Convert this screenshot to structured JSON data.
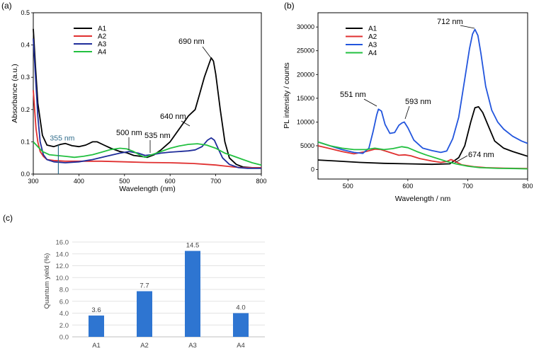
{
  "chart_data": [
    {
      "panel": "(a)",
      "type": "line",
      "xlabel": "Wavelength (nm)",
      "ylabel": "Absorbance (a.u.)",
      "xlim": [
        300,
        800
      ],
      "ylim": [
        0,
        0.5
      ],
      "xticks": [
        300,
        400,
        500,
        600,
        700,
        800
      ],
      "yticks": [
        0.0,
        0.1,
        0.2,
        0.3,
        0.4,
        0.5
      ],
      "ytick_labels": [
        "0.0",
        "0.1",
        "0.2",
        "0.3",
        "0.4",
        "0.5"
      ],
      "legend": "top-left",
      "marker": {
        "x": 355,
        "label": "355 nm",
        "color": "#2e6b8a"
      },
      "annotations": [
        {
          "text": "690 nm",
          "x": 690,
          "y": 0.36
        },
        {
          "text": "640 nm",
          "x": 640,
          "y": 0.094
        },
        {
          "text": "500 nm",
          "x": 505,
          "y": 0.07
        },
        {
          "text": "535 nm",
          "x": 540,
          "y": 0.065
        }
      ],
      "series": [
        {
          "name": "A1",
          "color": "#000000",
          "points": [
            [
              300,
              0.45
            ],
            [
              305,
              0.33
            ],
            [
              310,
              0.22
            ],
            [
              320,
              0.12
            ],
            [
              330,
              0.09
            ],
            [
              345,
              0.085
            ],
            [
              360,
              0.092
            ],
            [
              370,
              0.095
            ],
            [
              385,
              0.088
            ],
            [
              400,
              0.085
            ],
            [
              415,
              0.09
            ],
            [
              430,
              0.1
            ],
            [
              440,
              0.1
            ],
            [
              455,
              0.09
            ],
            [
              470,
              0.08
            ],
            [
              490,
              0.07
            ],
            [
              505,
              0.066
            ],
            [
              520,
              0.058
            ],
            [
              535,
              0.055
            ],
            [
              550,
              0.052
            ],
            [
              565,
              0.06
            ],
            [
              580,
              0.075
            ],
            [
              600,
              0.1
            ],
            [
              620,
              0.14
            ],
            [
              640,
              0.18
            ],
            [
              655,
              0.2
            ],
            [
              665,
              0.25
            ],
            [
              675,
              0.3
            ],
            [
              685,
              0.34
            ],
            [
              690,
              0.36
            ],
            [
              695,
              0.35
            ],
            [
              700,
              0.31
            ],
            [
              710,
              0.2
            ],
            [
              720,
              0.1
            ],
            [
              730,
              0.05
            ],
            [
              745,
              0.03
            ],
            [
              760,
              0.022
            ],
            [
              780,
              0.02
            ],
            [
              800,
              0.02
            ]
          ]
        },
        {
          "name": "A2",
          "color": "#e03030",
          "points": [
            [
              300,
              0.26
            ],
            [
              303,
              0.2
            ],
            [
              306,
              0.14
            ],
            [
              310,
              0.1
            ],
            [
              315,
              0.07
            ],
            [
              322,
              0.055
            ],
            [
              330,
              0.045
            ],
            [
              345,
              0.042
            ],
            [
              370,
              0.04
            ],
            [
              400,
              0.04
            ],
            [
              450,
              0.04
            ],
            [
              500,
              0.038
            ],
            [
              550,
              0.036
            ],
            [
              600,
              0.035
            ],
            [
              650,
              0.033
            ],
            [
              680,
              0.03
            ],
            [
              700,
              0.028
            ],
            [
              720,
              0.025
            ],
            [
              740,
              0.022
            ],
            [
              760,
              0.02
            ],
            [
              780,
              0.02
            ],
            [
              800,
              0.02
            ]
          ]
        },
        {
          "name": "A3",
          "color": "#1f2d9a",
          "points": [
            [
              300,
              0.42
            ],
            [
              305,
              0.3
            ],
            [
              310,
              0.18
            ],
            [
              315,
              0.1
            ],
            [
              322,
              0.06
            ],
            [
              330,
              0.045
            ],
            [
              345,
              0.038
            ],
            [
              370,
              0.035
            ],
            [
              400,
              0.038
            ],
            [
              430,
              0.045
            ],
            [
              460,
              0.055
            ],
            [
              490,
              0.065
            ],
            [
              510,
              0.07
            ],
            [
              530,
              0.065
            ],
            [
              545,
              0.058
            ],
            [
              560,
              0.06
            ],
            [
              580,
              0.065
            ],
            [
              600,
              0.068
            ],
            [
              620,
              0.07
            ],
            [
              640,
              0.072
            ],
            [
              655,
              0.075
            ],
            [
              670,
              0.085
            ],
            [
              682,
              0.105
            ],
            [
              690,
              0.112
            ],
            [
              697,
              0.105
            ],
            [
              705,
              0.08
            ],
            [
              715,
              0.05
            ],
            [
              730,
              0.03
            ],
            [
              750,
              0.02
            ],
            [
              770,
              0.018
            ],
            [
              800,
              0.018
            ]
          ]
        },
        {
          "name": "A4",
          "color": "#22c040",
          "points": [
            [
              300,
              0.1
            ],
            [
              310,
              0.085
            ],
            [
              320,
              0.07
            ],
            [
              335,
              0.06
            ],
            [
              350,
              0.058
            ],
            [
              370,
              0.055
            ],
            [
              390,
              0.052
            ],
            [
              410,
              0.055
            ],
            [
              430,
              0.06
            ],
            [
              450,
              0.068
            ],
            [
              470,
              0.076
            ],
            [
              490,
              0.08
            ],
            [
              505,
              0.078
            ],
            [
              520,
              0.07
            ],
            [
              535,
              0.058
            ],
            [
              545,
              0.052
            ],
            [
              560,
              0.06
            ],
            [
              580,
              0.07
            ],
            [
              600,
              0.08
            ],
            [
              620,
              0.087
            ],
            [
              640,
              0.092
            ],
            [
              660,
              0.094
            ],
            [
              680,
              0.09
            ],
            [
              700,
              0.08
            ],
            [
              720,
              0.065
            ],
            [
              740,
              0.055
            ],
            [
              760,
              0.045
            ],
            [
              780,
              0.035
            ],
            [
              800,
              0.028
            ]
          ]
        }
      ]
    },
    {
      "panel": "(b)",
      "type": "line",
      "xlabel": "Wavelength / nm",
      "ylabel": "PL intensity / counts",
      "xlim": [
        450,
        800
      ],
      "ylim": [
        -2000,
        33000
      ],
      "xticks": [
        500,
        600,
        700,
        800
      ],
      "yticks": [
        0,
        5000,
        10000,
        15000,
        20000,
        25000,
        30000
      ],
      "ytick_labels": [
        "0",
        "5000",
        "10000",
        "15000",
        "20000",
        "25000",
        "30000"
      ],
      "legend": "top-left",
      "annotations": [
        {
          "text": "712 nm",
          "x": 712,
          "y": 29500
        },
        {
          "text": "551 nm",
          "x": 551,
          "y": 12800
        },
        {
          "text": "593 nm",
          "x": 593,
          "y": 9800
        },
        {
          "text": "674 nm",
          "x": 674,
          "y": 2000
        }
      ],
      "series": [
        {
          "name": "A1",
          "color": "#000000",
          "points": [
            [
              450,
              2000
            ],
            [
              480,
              1800
            ],
            [
              520,
              1500
            ],
            [
              560,
              1300
            ],
            [
              600,
              1200
            ],
            [
              640,
              1100
            ],
            [
              670,
              1200
            ],
            [
              685,
              2500
            ],
            [
              695,
              5000
            ],
            [
              705,
              10000
            ],
            [
              712,
              13000
            ],
            [
              718,
              13200
            ],
            [
              725,
              12000
            ],
            [
              735,
              9000
            ],
            [
              745,
              6000
            ],
            [
              760,
              4500
            ],
            [
              775,
              3800
            ],
            [
              790,
              3200
            ],
            [
              800,
              2800
            ]
          ]
        },
        {
          "name": "A2",
          "color": "#e03030",
          "points": [
            [
              450,
              5000
            ],
            [
              470,
              4400
            ],
            [
              490,
              3800
            ],
            [
              510,
              3300
            ],
            [
              530,
              3800
            ],
            [
              545,
              4300
            ],
            [
              555,
              4200
            ],
            [
              570,
              3600
            ],
            [
              585,
              3000
            ],
            [
              595,
              3100
            ],
            [
              605,
              2900
            ],
            [
              620,
              2300
            ],
            [
              640,
              1800
            ],
            [
              655,
              1500
            ],
            [
              665,
              1700
            ],
            [
              672,
              2100
            ],
            [
              678,
              1800
            ],
            [
              690,
              1000
            ],
            [
              710,
              600
            ],
            [
              730,
              400
            ],
            [
              760,
              300
            ],
            [
              800,
              200
            ]
          ]
        },
        {
          "name": "A3",
          "color": "#2255dd",
          "points": [
            [
              450,
              5800
            ],
            [
              470,
              5000
            ],
            [
              490,
              4200
            ],
            [
              510,
              3600
            ],
            [
              525,
              3400
            ],
            [
              535,
              4500
            ],
            [
              542,
              8000
            ],
            [
              548,
              11500
            ],
            [
              551,
              12700
            ],
            [
              556,
              12300
            ],
            [
              562,
              9500
            ],
            [
              570,
              7600
            ],
            [
              578,
              7800
            ],
            [
              585,
              9300
            ],
            [
              590,
              9800
            ],
            [
              594,
              10000
            ],
            [
              600,
              8800
            ],
            [
              610,
              6200
            ],
            [
              625,
              4500
            ],
            [
              640,
              4000
            ],
            [
              655,
              3600
            ],
            [
              665,
              3900
            ],
            [
              675,
              6500
            ],
            [
              685,
              11000
            ],
            [
              695,
              19000
            ],
            [
              703,
              25500
            ],
            [
              708,
              28500
            ],
            [
              712,
              29500
            ],
            [
              717,
              28200
            ],
            [
              722,
              24500
            ],
            [
              730,
              17500
            ],
            [
              740,
              12500
            ],
            [
              750,
              10000
            ],
            [
              760,
              8500
            ],
            [
              775,
              7000
            ],
            [
              790,
              6000
            ],
            [
              800,
              5500
            ]
          ]
        },
        {
          "name": "A4",
          "color": "#22c040",
          "points": [
            [
              450,
              5800
            ],
            [
              470,
              5000
            ],
            [
              490,
              4500
            ],
            [
              510,
              4200
            ],
            [
              530,
              4200
            ],
            [
              545,
              4500
            ],
            [
              560,
              4200
            ],
            [
              575,
              4400
            ],
            [
              590,
              4800
            ],
            [
              600,
              4600
            ],
            [
              615,
              3800
            ],
            [
              630,
              3100
            ],
            [
              650,
              2300
            ],
            [
              665,
              1700
            ],
            [
              680,
              1200
            ],
            [
              700,
              700
            ],
            [
              720,
              400
            ],
            [
              750,
              250
            ],
            [
              780,
              200
            ],
            [
              800,
              150
            ]
          ]
        }
      ]
    },
    {
      "panel": "(c)",
      "type": "bar",
      "ylabel": "Quantum yield (%)",
      "categories": [
        "A1",
        "A2",
        "A3",
        "A4"
      ],
      "values": [
        3.6,
        7.7,
        14.5,
        4.0
      ],
      "data_labels": [
        "3.6",
        "7.7",
        "14.5",
        "4.0"
      ],
      "ylim": [
        0,
        16
      ],
      "yticks": [
        0,
        2,
        4,
        6,
        8,
        10,
        12,
        14,
        16
      ],
      "ytick_labels": [
        "0.0",
        "2.0",
        "4.0",
        "6.0",
        "8.0",
        "10.0",
        "12.0",
        "14.0",
        "16.0"
      ],
      "bar_color": "#2e75d1",
      "grid": true
    }
  ]
}
